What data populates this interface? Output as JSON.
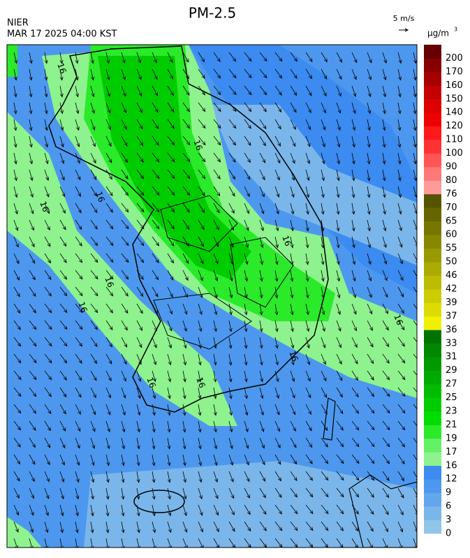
{
  "header": {
    "source": "NIER",
    "time": "MAR 17 2025 04:00 KST",
    "title": "PM-2.5",
    "wind_reference": "5 m/s",
    "unit": "μg/m",
    "unit_power": "3"
  },
  "map": {
    "contour_label": "16"
  },
  "colorbar": {
    "levels": [
      0,
      3,
      6,
      9,
      12,
      16,
      17,
      19,
      21,
      23,
      25,
      27,
      29,
      31,
      33,
      36,
      37,
      39,
      42,
      46,
      50,
      55,
      60,
      65,
      70,
      76,
      80,
      90,
      100,
      110,
      120,
      140,
      150,
      160,
      170,
      200
    ],
    "colors": [
      "#8fc6e8",
      "#7ab6ea",
      "#62a6ec",
      "#4d98ee",
      "#3b8bf0",
      "#8ef28e",
      "#66f066",
      "#2aea2a",
      "#00dd00",
      "#00cc00",
      "#00bb00",
      "#00aa00",
      "#009900",
      "#008800",
      "#007300",
      "#f0f000",
      "#dcdc00",
      "#cccc00",
      "#bbbb00",
      "#aaaa00",
      "#999900",
      "#888800",
      "#777700",
      "#666600",
      "#555500",
      "#ff9a9a",
      "#ff7777",
      "#ff5555",
      "#ff3333",
      "#ff1a1a",
      "#ee0000",
      "#dd0000",
      "#c40000",
      "#a60000",
      "#880000",
      "#660000"
    ]
  }
}
